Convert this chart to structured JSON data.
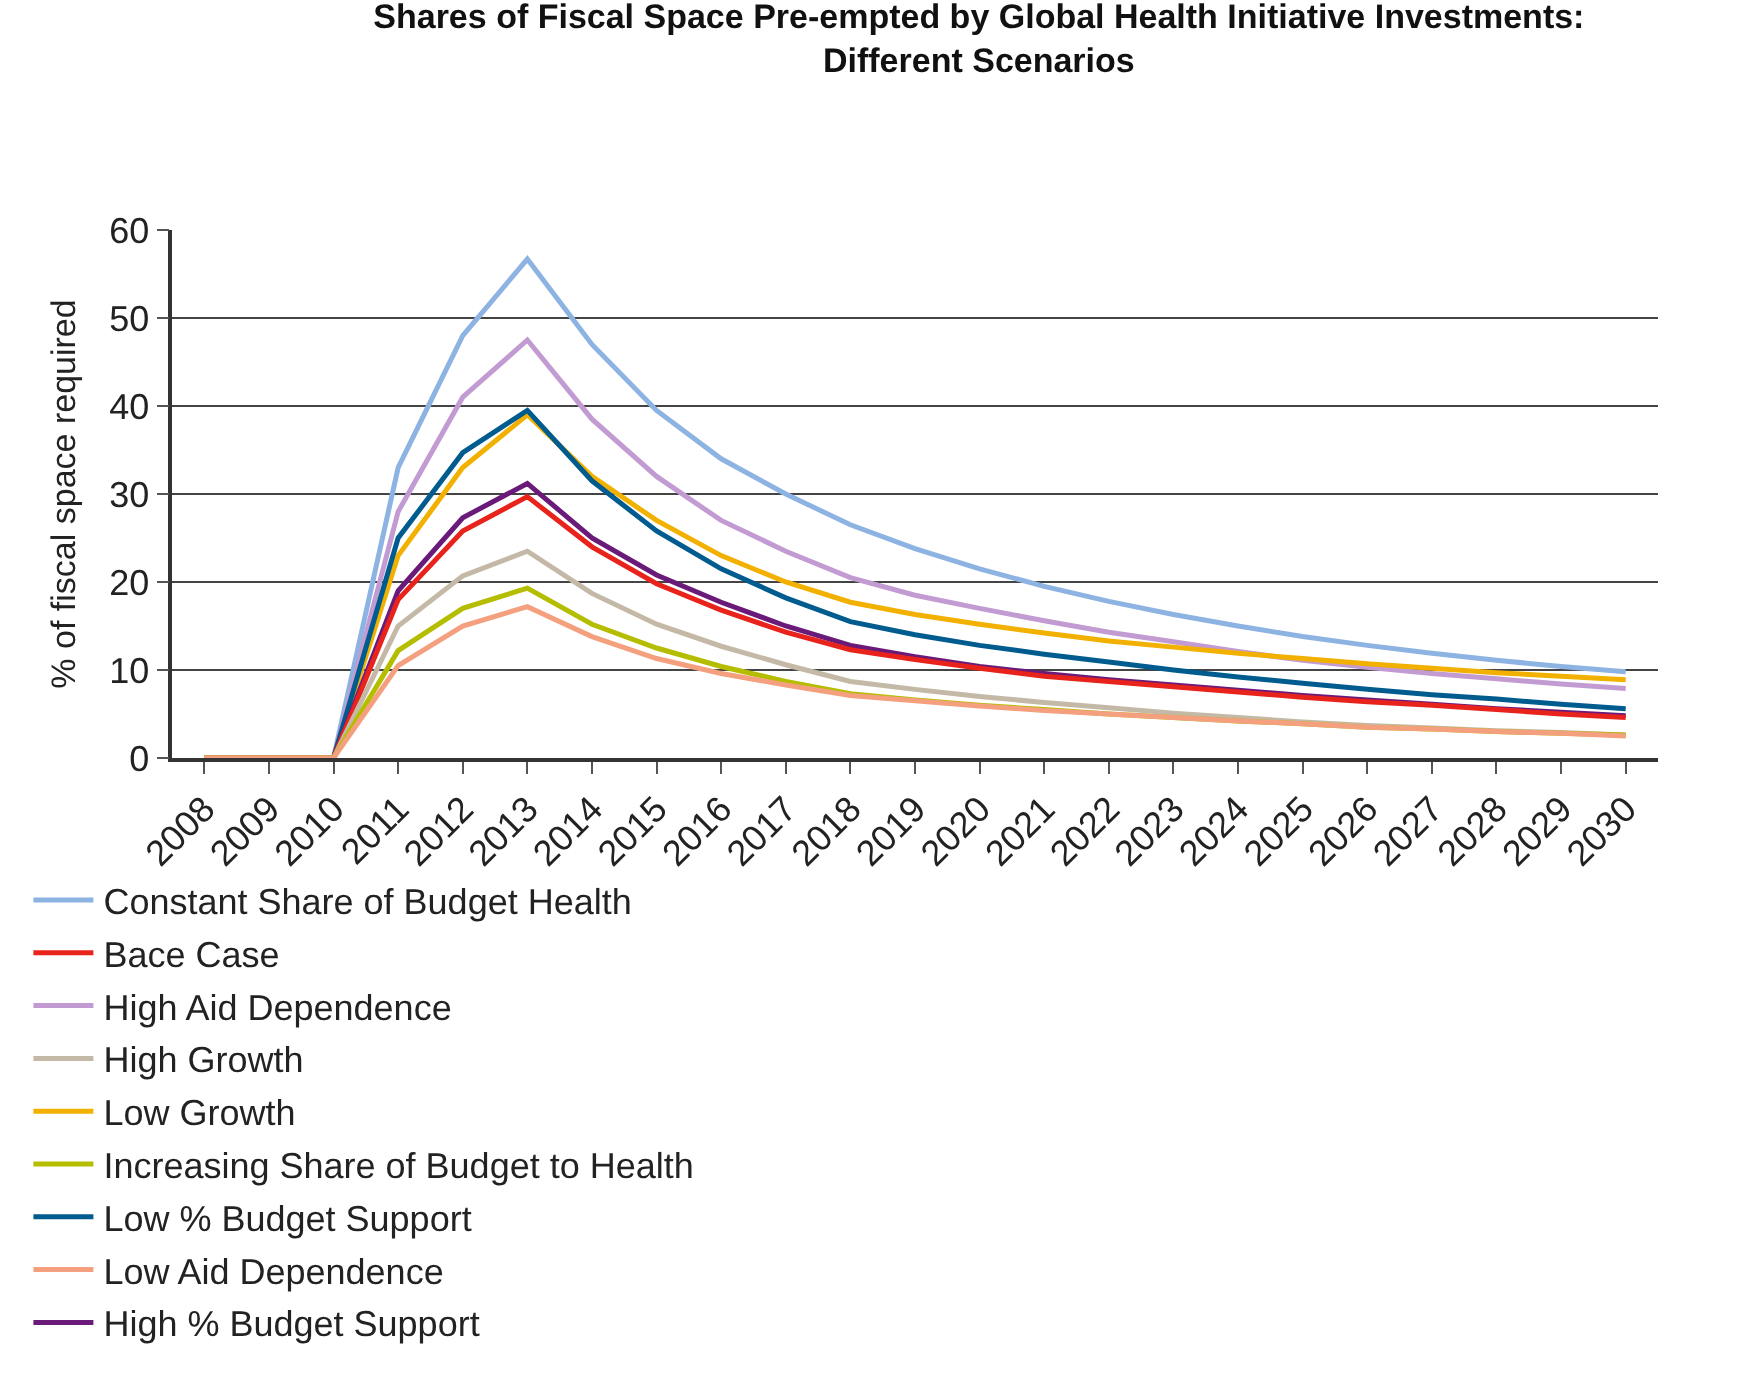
{
  "chart_data": {
    "type": "line",
    "title": "Shares of Fiscal Space Pre-empted by Global Health Initiative Investments: Different Scenarios",
    "ylabel": "% of fiscal space required",
    "categories": [
      "2008",
      "2009",
      "2010",
      "2011",
      "2012",
      "2013",
      "2014",
      "2015",
      "2016",
      "2017",
      "2018",
      "2019",
      "2020",
      "2021",
      "2022",
      "2023",
      "2024",
      "2025",
      "2026",
      "2027",
      "2028",
      "2029",
      "2030"
    ],
    "ylim": [
      0,
      60
    ],
    "yticks": [
      0,
      10,
      20,
      30,
      40,
      50,
      60
    ],
    "grid": "y",
    "legend": "bottom",
    "marker": "none",
    "line_style": "solid",
    "series": [
      {
        "name": "Constant Share of Budget Health",
        "color": "#8db3e2",
        "values": [
          0,
          0,
          0,
          33,
          48,
          56.7,
          47,
          39.5,
          34,
          30,
          26.5,
          23.8,
          21.5,
          19.5,
          17.8,
          16.3,
          15,
          13.8,
          12.8,
          11.9,
          11.1,
          10.4,
          9.8
        ]
      },
      {
        "name": "High Aid Dependence",
        "color": "#c39bd3",
        "values": [
          0,
          0,
          0,
          28,
          41,
          47.5,
          38.5,
          32,
          27,
          23.5,
          20.5,
          18.5,
          17,
          15.6,
          14.3,
          13.2,
          12.1,
          11.1,
          10.3,
          9.6,
          9,
          8.4,
          7.9
        ]
      },
      {
        "name": "Low Growth",
        "color": "#f2b100",
        "values": [
          0,
          0,
          0,
          23,
          33,
          39,
          32,
          27,
          23,
          20,
          17.7,
          16.3,
          15.2,
          14.2,
          13.3,
          12.6,
          11.9,
          11.3,
          10.7,
          10.2,
          9.7,
          9.3,
          8.9
        ]
      },
      {
        "name": "Low % Budget Support",
        "color": "#005b8f",
        "values": [
          0,
          0,
          0,
          25,
          34.7,
          39.5,
          31.5,
          25.8,
          21.5,
          18.2,
          15.5,
          14,
          12.8,
          11.8,
          10.9,
          10,
          9.2,
          8.5,
          7.8,
          7.2,
          6.7,
          6.1,
          5.6
        ]
      },
      {
        "name": "High % Budget Support",
        "color": "#6a1b7a",
        "values": [
          0,
          0,
          0,
          19,
          27.3,
          31.2,
          25,
          20.8,
          17.7,
          15,
          12.8,
          11.5,
          10.4,
          9.6,
          8.9,
          8.3,
          7.7,
          7.1,
          6.6,
          6.1,
          5.6,
          5.2,
          4.8
        ]
      },
      {
        "name": "Bace Case",
        "color": "#e8231c",
        "values": [
          0,
          0,
          0,
          18,
          25.8,
          29.7,
          24,
          19.8,
          16.8,
          14.3,
          12.3,
          11.2,
          10.2,
          9.3,
          8.7,
          8.1,
          7.5,
          6.9,
          6.4,
          6,
          5.5,
          5,
          4.6
        ]
      },
      {
        "name": "High Growth",
        "color": "#c4b9a6",
        "values": [
          0,
          0,
          0,
          15,
          20.7,
          23.5,
          18.7,
          15.2,
          12.7,
          10.6,
          8.7,
          7.8,
          7,
          6.3,
          5.7,
          5.1,
          4.6,
          4.1,
          3.7,
          3.4,
          3.1,
          2.9,
          2.6
        ]
      },
      {
        "name": "Increasing Share of Budget to Health",
        "color": "#b5bd00",
        "values": [
          0,
          0,
          0,
          12.2,
          17,
          19.3,
          15.2,
          12.5,
          10.4,
          8.7,
          7.3,
          6.6,
          6,
          5.5,
          5,
          4.6,
          4.2,
          3.9,
          3.5,
          3.3,
          3,
          2.8,
          2.6
        ]
      },
      {
        "name": "Low Aid Dependence",
        "color": "#f4a07e",
        "values": [
          0,
          0,
          0,
          10.5,
          15,
          17.2,
          13.8,
          11.3,
          9.6,
          8.3,
          7.1,
          6.5,
          5.9,
          5.4,
          5,
          4.6,
          4.2,
          3.9,
          3.5,
          3.3,
          3,
          2.8,
          2.5
        ]
      }
    ]
  }
}
